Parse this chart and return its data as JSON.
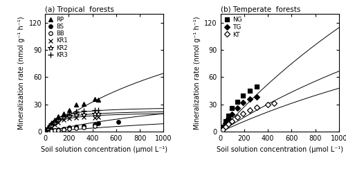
{
  "panel_a_title": "(a) Tropical  forests",
  "panel_b_title": "(b) Temperate  forests",
  "xlabel": "Soil solution concentration (μmol L⁻¹)",
  "ylabel": "Mineralization rate (nmol g⁻¹ h⁻¹)",
  "xlim": [
    0,
    1000
  ],
  "ylim": [
    0,
    130
  ],
  "yticks": [
    0,
    30,
    60,
    90,
    120
  ],
  "xticks": [
    0,
    200,
    400,
    600,
    800,
    1000
  ],
  "tropical_series": [
    {
      "label": "RP",
      "marker": "^",
      "filled": true,
      "x": [
        2.1,
        10,
        25,
        55,
        80,
        110,
        155,
        205,
        265,
        325,
        420,
        450
      ],
      "y": [
        0.5,
        2,
        4,
        9,
        13,
        17,
        20,
        24,
        30,
        31,
        36,
        35
      ],
      "Vmax": 180.0,
      "Km": 1800.0
    },
    {
      "label": "BS",
      "marker": "o",
      "filled": true,
      "x": [
        2.1,
        10,
        25,
        55,
        80,
        110,
        155,
        205,
        265,
        325,
        420,
        450,
        620
      ],
      "y": [
        0.2,
        0.4,
        0.8,
        1.5,
        2.0,
        2.5,
        3.0,
        4.5,
        5.5,
        6.0,
        8.0,
        9.0,
        11.0
      ],
      "Vmax": 60.0,
      "Km": 2000.0
    },
    {
      "label": "BB",
      "marker": "o",
      "filled": false,
      "x": [
        2.1,
        10,
        25,
        55,
        80,
        110,
        155,
        205,
        265,
        325,
        420
      ],
      "y": [
        0.1,
        0.3,
        0.5,
        1.0,
        1.5,
        2.0,
        2.5,
        3.5,
        4.0,
        5.0,
        6.0
      ],
      "Vmax": 40.0,
      "Km": 3500.0
    },
    {
      "label": "KR1",
      "marker": "x",
      "filled": false,
      "x": [
        2.1,
        10,
        25,
        55,
        80,
        110,
        155,
        205,
        265,
        325,
        420,
        450
      ],
      "y": [
        0.3,
        1.0,
        2.5,
        5.5,
        8.0,
        10.5,
        13.0,
        14.5,
        15.5,
        16.0,
        15.5,
        16.0
      ],
      "Vmax": 22.0,
      "Km": 100.0
    },
    {
      "label": "KR2",
      "marker": "*",
      "filled": false,
      "x": [
        2.1,
        10,
        25,
        55,
        80,
        110,
        155,
        205,
        265,
        325,
        420,
        450
      ],
      "y": [
        0.5,
        1.5,
        3.5,
        7.0,
        10.0,
        13.0,
        16.0,
        18.0,
        19.0,
        19.5,
        20.0,
        20.0
      ],
      "Vmax": 24.0,
      "Km": 90.0
    },
    {
      "label": "KR3",
      "marker": "+",
      "filled": false,
      "x": [
        2.1,
        10,
        25,
        55,
        80,
        110,
        155,
        205,
        265,
        325,
        420,
        450
      ],
      "y": [
        0.6,
        2.0,
        5.0,
        9.0,
        12.0,
        15.0,
        18.0,
        20.0,
        22.0,
        23.0,
        24.0,
        24.0
      ],
      "Vmax": 28.0,
      "Km": 90.0
    }
  ],
  "temperate_series": [
    {
      "label": "NG",
      "marker": "s",
      "filled": true,
      "x": [
        1.4,
        7,
        18,
        42,
        68,
        98,
        140,
        190,
        248,
        308
      ],
      "y": [
        0.5,
        2.0,
        5.5,
        12.0,
        18.0,
        26.0,
        33.0,
        40.0,
        45.0,
        50.0
      ],
      "Vmax": 550.0,
      "Km": 3800.0
    },
    {
      "label": "TG",
      "marker": "D",
      "filled": true,
      "x": [
        1.4,
        7,
        18,
        42,
        68,
        98,
        140,
        190,
        248,
        308
      ],
      "y": [
        0.3,
        1.5,
        4.0,
        9.5,
        14.5,
        19.0,
        26.0,
        32.5,
        36.0,
        38.0
      ],
      "Vmax": 320.0,
      "Km": 3800.0
    },
    {
      "label": "KT",
      "marker": "D",
      "filled": false,
      "x": [
        1.4,
        7,
        18,
        42,
        68,
        98,
        140,
        190,
        248,
        308,
        398,
        452
      ],
      "y": [
        0.2,
        0.8,
        2.5,
        5.5,
        8.5,
        12.0,
        16.0,
        20.0,
        24.0,
        27.0,
        30.0,
        31.5
      ],
      "Vmax": 230.0,
      "Km": 3800.0
    }
  ]
}
